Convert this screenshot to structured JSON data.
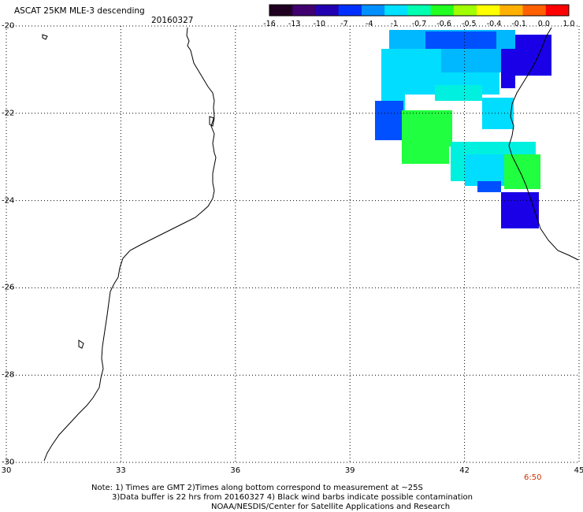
{
  "title": "ASCAT 25KM MLE-3 descending",
  "date": "20160327",
  "colorbar": {
    "labels": [
      "-16",
      "-13",
      "-10",
      "-7",
      "-4",
      "-1",
      "-0.7",
      "-0.6",
      "-0.5",
      "-0.4",
      "-0.1",
      "0.0",
      "1.0"
    ],
    "colors": [
      "#200020",
      "#400070",
      "#2000b0",
      "#0030ff",
      "#0090ff",
      "#00e0ff",
      "#00ffb0",
      "#20ff20",
      "#a0ff00",
      "#ffff00",
      "#ffb000",
      "#ff6000",
      "#ff0000"
    ]
  },
  "axes": {
    "lon_labels": [
      "30",
      "33",
      "36",
      "39",
      "42",
      "45"
    ],
    "lat_labels": [
      "-20",
      "-22",
      "-24",
      "-26",
      "-28",
      "-30"
    ],
    "lon_range": [
      30,
      45
    ],
    "lat_range": [
      -30,
      -20
    ],
    "grid": true,
    "grid_style": "dotted"
  },
  "time_label": "6:50",
  "notes": [
    "Note: 1) Times are GMT 2)Times along bottom correspond to measurement at ~25S",
    "3)Data buffer is 22 hrs from 20160327 4) Black wind barbs indicate possible contamination",
    "NOAA/NESDIS/Center for Satellite Applications and Research"
  ],
  "palette": {
    "blue": "#0050ff",
    "deepblue": "#1a00e6",
    "lightblue": "#00b8ff",
    "cyan": "#00ddff",
    "aqua": "#00f0e0",
    "green": "#20ff40"
  }
}
